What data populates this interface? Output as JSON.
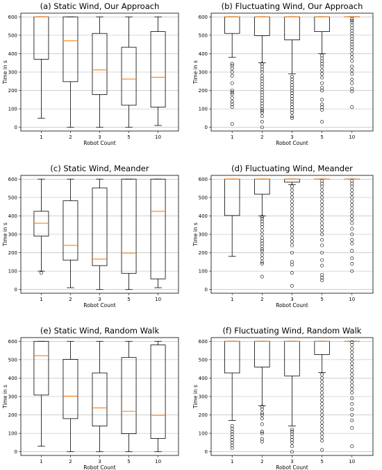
{
  "colors": {
    "median": "#ff7f0e",
    "box": "#000000",
    "grid": "#b0b0b0",
    "flier": "#000000"
  },
  "chart_data": [
    {
      "type": "box",
      "title": "(a) Static Wind, Our Approach",
      "xlabel": "Robot Count",
      "ylabel": "Time in s",
      "categories": [
        "1",
        "2",
        "3",
        "5",
        "10"
      ],
      "ylim": [
        -20,
        620
      ],
      "yticks": [
        0,
        100,
        200,
        300,
        400,
        500,
        600
      ],
      "grid": "horizontal",
      "boxes": [
        {
          "whislo": 50,
          "q1": 370,
          "med": 600,
          "q3": 600,
          "whishi": 600,
          "fliers": []
        },
        {
          "whislo": 0,
          "q1": 248,
          "med": 470,
          "q3": 600,
          "whishi": 600,
          "fliers": []
        },
        {
          "whislo": 0,
          "q1": 178,
          "med": 312,
          "q3": 510,
          "whishi": 600,
          "fliers": []
        },
        {
          "whislo": 0,
          "q1": 120,
          "med": 262,
          "q3": 435,
          "whishi": 600,
          "fliers": []
        },
        {
          "whislo": 10,
          "q1": 110,
          "med": 272,
          "q3": 520,
          "whishi": 600,
          "fliers": []
        }
      ]
    },
    {
      "type": "box",
      "title": "(b) Fluctuating Wind, Our Approach",
      "xlabel": "Robot Count",
      "ylabel": "Time in s",
      "categories": [
        "1",
        "2",
        "3",
        "5",
        "10"
      ],
      "ylim": [
        -20,
        620
      ],
      "yticks": [
        0,
        100,
        200,
        300,
        400,
        500,
        600
      ],
      "grid": "horizontal",
      "boxes": [
        {
          "whislo": 380,
          "q1": 510,
          "med": 600,
          "q3": 600,
          "whishi": 600,
          "fliers": [
            18,
            110,
            125,
            140,
            160,
            180,
            190,
            200,
            240,
            280,
            300,
            320,
            335,
            345
          ]
        },
        {
          "whislo": 350,
          "q1": 498,
          "med": 600,
          "q3": 600,
          "whishi": 600,
          "fliers": [
            0,
            30,
            60,
            80,
            90,
            100,
            115,
            130,
            145,
            160,
            175,
            190,
            205,
            220,
            235,
            250,
            265,
            280,
            300,
            315,
            330,
            345
          ]
        },
        {
          "whislo": 290,
          "q1": 475,
          "med": 600,
          "q3": 600,
          "whishi": 600,
          "fliers": [
            50,
            60,
            80,
            95,
            110,
            125,
            140,
            155,
            170,
            185,
            200,
            215,
            230,
            245,
            260,
            275
          ]
        },
        {
          "whislo": 400,
          "q1": 520,
          "med": 600,
          "q3": 600,
          "whishi": 600,
          "fliers": [
            30,
            95,
            110,
            125,
            150,
            200,
            215,
            240,
            270,
            290,
            310,
            330,
            345,
            360,
            375,
            390
          ]
        },
        {
          "whislo": 600,
          "q1": 600,
          "med": 600,
          "q3": 600,
          "whishi": 600,
          "fliers": [
            110,
            195,
            210,
            240,
            260,
            290,
            310,
            330,
            360,
            380,
            400,
            420,
            435,
            450,
            465,
            480,
            495,
            510,
            525,
            540,
            555,
            570,
            580,
            590
          ]
        }
      ]
    },
    {
      "type": "box",
      "title": "(c) Static Wind, Meander",
      "xlabel": "Robot Count",
      "ylabel": "Time in s",
      "categories": [
        "1",
        "2",
        "3",
        "5",
        "10"
      ],
      "ylim": [
        -20,
        620
      ],
      "yticks": [
        0,
        100,
        200,
        300,
        400,
        500,
        600
      ],
      "grid": "horizontal",
      "boxes": [
        {
          "whislo": 100,
          "q1": 290,
          "med": 360,
          "q3": 425,
          "whishi": 600,
          "fliers": [
            90
          ]
        },
        {
          "whislo": 10,
          "q1": 160,
          "med": 240,
          "q3": 482,
          "whishi": 600,
          "fliers": []
        },
        {
          "whislo": 0,
          "q1": 130,
          "med": 165,
          "q3": 552,
          "whishi": 600,
          "fliers": []
        },
        {
          "whislo": 0,
          "q1": 88,
          "med": 198,
          "q3": 600,
          "whishi": 600,
          "fliers": []
        },
        {
          "whislo": 10,
          "q1": 58,
          "med": 425,
          "q3": 600,
          "whishi": 600,
          "fliers": []
        }
      ]
    },
    {
      "type": "box",
      "title": "(d) Fluctuating Wind, Meander",
      "xlabel": "Robot Count",
      "ylabel": "Time in s",
      "categories": [
        "1",
        "2",
        "3",
        "5",
        "10"
      ],
      "ylim": [
        -20,
        620
      ],
      "yticks": [
        0,
        100,
        200,
        300,
        400,
        500,
        600
      ],
      "grid": "horizontal",
      "boxes": [
        {
          "whislo": 180,
          "q1": 402,
          "med": 600,
          "q3": 600,
          "whishi": 600,
          "fliers": []
        },
        {
          "whislo": 400,
          "q1": 518,
          "med": 600,
          "q3": 600,
          "whishi": 600,
          "fliers": [
            70,
            140,
            150,
            170,
            190,
            210,
            220,
            235,
            250,
            265,
            280,
            300,
            320,
            340,
            355,
            370,
            385,
            395
          ]
        },
        {
          "whislo": 570,
          "q1": 583,
          "med": 600,
          "q3": 600,
          "whishi": 600,
          "fliers": [
            20,
            90,
            135,
            150,
            200,
            240,
            260,
            280,
            300,
            320,
            340,
            360,
            380,
            400,
            420,
            440,
            460,
            480,
            500,
            520,
            540,
            560
          ]
        },
        {
          "whislo": 600,
          "q1": 600,
          "med": 600,
          "q3": 600,
          "whishi": 600,
          "fliers": [
            50,
            65,
            80,
            130,
            160,
            200,
            240,
            270,
            300,
            320,
            340,
            360,
            380,
            400,
            420,
            440,
            460,
            480,
            500,
            520,
            540,
            560,
            575,
            590
          ]
        },
        {
          "whislo": 600,
          "q1": 600,
          "med": 600,
          "q3": 600,
          "whishi": 600,
          "fliers": [
            100,
            140,
            170,
            210,
            250,
            270,
            300,
            330,
            360,
            380,
            400,
            420,
            440,
            460,
            480,
            500,
            520,
            540,
            560,
            575,
            590
          ]
        }
      ]
    },
    {
      "type": "box",
      "title": "(e) Static Wind, Random Walk",
      "xlabel": "Robot Count",
      "ylabel": "Time in s",
      "categories": [
        "1",
        "2",
        "3",
        "5",
        "10"
      ],
      "ylim": [
        -20,
        620
      ],
      "yticks": [
        0,
        100,
        200,
        300,
        400,
        500,
        600
      ],
      "grid": "horizontal",
      "boxes": [
        {
          "whislo": 30,
          "q1": 308,
          "med": 522,
          "q3": 600,
          "whishi": 600,
          "fliers": []
        },
        {
          "whislo": 0,
          "q1": 180,
          "med": 302,
          "q3": 502,
          "whishi": 600,
          "fliers": []
        },
        {
          "whislo": 0,
          "q1": 140,
          "med": 238,
          "q3": 428,
          "whishi": 600,
          "fliers": []
        },
        {
          "whislo": 0,
          "q1": 98,
          "med": 220,
          "q3": 512,
          "whishi": 600,
          "fliers": []
        },
        {
          "whislo": 0,
          "q1": 72,
          "med": 198,
          "q3": 580,
          "whishi": 600,
          "fliers": []
        }
      ]
    },
    {
      "type": "box",
      "title": "(f) Fluctuating Wind, Random Walk",
      "xlabel": "Robot Count",
      "ylabel": "Time in s",
      "categories": [
        "1",
        "2",
        "3",
        "5",
        "10"
      ],
      "ylim": [
        -20,
        620
      ],
      "yticks": [
        0,
        100,
        200,
        300,
        400,
        500,
        600
      ],
      "grid": "horizontal",
      "boxes": [
        {
          "whislo": 170,
          "q1": 428,
          "med": 600,
          "q3": 600,
          "whishi": 600,
          "fliers": [
            20,
            35,
            50,
            65,
            80,
            95,
            110,
            125,
            140
          ]
        },
        {
          "whislo": 250,
          "q1": 460,
          "med": 600,
          "q3": 600,
          "whishi": 600,
          "fliers": [
            55,
            70,
            100,
            110,
            150,
            180,
            200,
            210,
            230,
            245
          ]
        },
        {
          "whislo": 140,
          "q1": 412,
          "med": 600,
          "q3": 600,
          "whishi": 600,
          "fliers": [
            0,
            30,
            50,
            65,
            80,
            95,
            110,
            120
          ]
        },
        {
          "whislo": 430,
          "q1": 528,
          "med": 600,
          "q3": 600,
          "whishi": 600,
          "fliers": [
            10,
            60,
            80,
            100,
            120,
            140,
            160,
            180,
            200,
            220,
            240,
            260,
            280,
            300,
            320,
            340,
            360,
            380,
            400,
            420
          ]
        },
        {
          "whislo": 600,
          "q1": 600,
          "med": 600,
          "q3": 600,
          "whishi": 600,
          "fliers": [
            30,
            130,
            170,
            200,
            230,
            260,
            290,
            320,
            340,
            360,
            380,
            400,
            420,
            440,
            460,
            480,
            500,
            520,
            540,
            560,
            580,
            595
          ]
        }
      ]
    }
  ]
}
